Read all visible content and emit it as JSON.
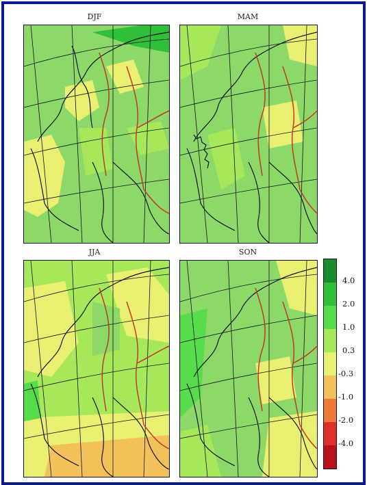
{
  "panels": [
    {
      "title": "DJF"
    },
    {
      "title": "MAM"
    },
    {
      "title": "JJA"
    },
    {
      "title": "SON"
    }
  ],
  "colorbar": {
    "labels": [
      "4.0",
      "2.0",
      "1.0",
      "0.3",
      "-0.3",
      "-1.0",
      "-2.0",
      "-4.0"
    ],
    "colors": [
      "#1a8c2e",
      "#2fbf3a",
      "#57dc4c",
      "#a6e85a",
      "#e9ef70",
      "#f2c15a",
      "#ee7a3a",
      "#e0302a",
      "#b8101c"
    ]
  },
  "colors": {
    "frame": "#0b1a8c",
    "land_green": "#8cd96a",
    "light_green": "#a6e85a",
    "yellow": "#e9ef70",
    "orange": "#f2c15a",
    "dark_green": "#2fbf3a",
    "coastline": "#111111",
    "border_red": "#c0392b"
  }
}
